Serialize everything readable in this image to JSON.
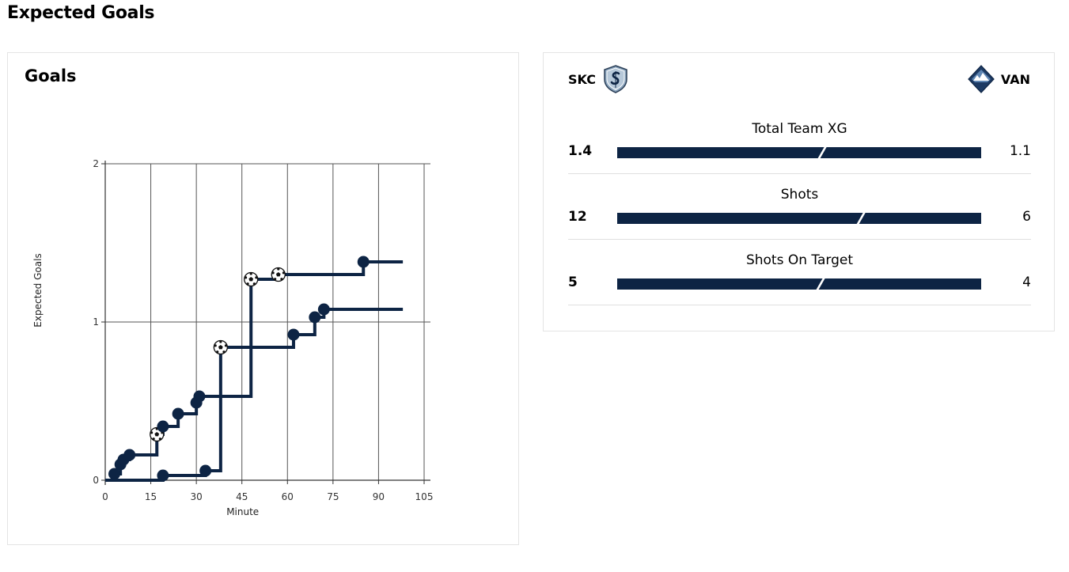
{
  "page": {
    "title": "Expected Goals"
  },
  "chart_data": {
    "type": "line",
    "step": true,
    "title": "Goals",
    "xlabel": "Minute",
    "ylabel": "Expected Goals",
    "xlim": [
      0,
      105
    ],
    "ylim": [
      0,
      2
    ],
    "xticks": [
      0,
      15,
      30,
      45,
      60,
      75,
      90,
      105
    ],
    "yticks": [
      0,
      1,
      2
    ],
    "grid": true,
    "colors": {
      "line": "#0d2444",
      "goal_marker_fill": "#ffffff"
    },
    "series": [
      {
        "name": "SKC",
        "end_minute": 98,
        "shots": [
          {
            "minute": 3,
            "xg": 0.04,
            "goal": false
          },
          {
            "minute": 5,
            "xg": 0.1,
            "goal": false
          },
          {
            "minute": 6,
            "xg": 0.13,
            "goal": false
          },
          {
            "minute": 8,
            "xg": 0.16,
            "goal": false
          },
          {
            "minute": 17,
            "xg": 0.29,
            "goal": true
          },
          {
            "minute": 19,
            "xg": 0.34,
            "goal": false
          },
          {
            "minute": 24,
            "xg": 0.42,
            "goal": false
          },
          {
            "minute": 30,
            "xg": 0.49,
            "goal": false
          },
          {
            "minute": 31,
            "xg": 0.53,
            "goal": false
          },
          {
            "minute": 48,
            "xg": 1.27,
            "goal": true
          },
          {
            "minute": 57,
            "xg": 1.3,
            "goal": true
          },
          {
            "minute": 85,
            "xg": 1.38,
            "goal": false
          }
        ]
      },
      {
        "name": "VAN",
        "end_minute": 98,
        "shots": [
          {
            "minute": 19,
            "xg": 0.03,
            "goal": false
          },
          {
            "minute": 33,
            "xg": 0.06,
            "goal": false
          },
          {
            "minute": 38,
            "xg": 0.84,
            "goal": true
          },
          {
            "minute": 62,
            "xg": 0.92,
            "goal": false
          },
          {
            "minute": 69,
            "xg": 1.03,
            "goal": false
          },
          {
            "minute": 72,
            "xg": 1.08,
            "goal": false
          }
        ]
      }
    ]
  },
  "teams": {
    "home": {
      "code": "SKC",
      "crest_icon": "sporting-kc-crest-icon"
    },
    "away": {
      "code": "VAN",
      "crest_icon": "vancouver-whitecaps-crest-icon"
    }
  },
  "stats": [
    {
      "label": "Total Team XG",
      "home": "1.4",
      "away": "1.1",
      "home_value": 1.4,
      "away_value": 1.1
    },
    {
      "label": "Shots",
      "home": "12",
      "away": "6",
      "home_value": 12,
      "away_value": 6
    },
    {
      "label": "Shots On Target",
      "home": "5",
      "away": "4",
      "home_value": 5,
      "away_value": 4
    }
  ]
}
